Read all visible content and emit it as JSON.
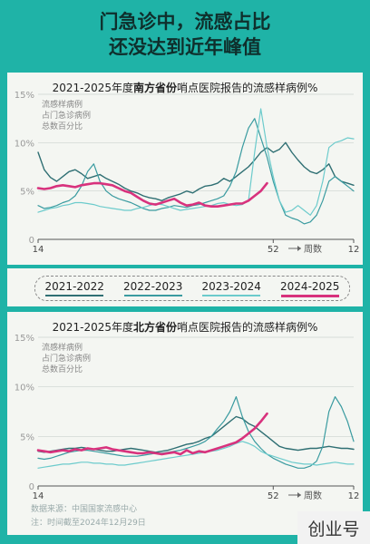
{
  "header": {
    "line1": "门急诊中，流感占比",
    "line2": "还没达到近年峰值"
  },
  "legend": [
    {
      "label": "2021-2022",
      "color": "#2f6f73"
    },
    {
      "label": "2022-2023",
      "color": "#3a9ba0"
    },
    {
      "label": "2023-2024",
      "color": "#6ccbcc"
    },
    {
      "label": "2024-2025",
      "color": "#d8327d"
    }
  ],
  "footer": {
    "source": "数据来源：中国国家流感中心",
    "note": "注：时间截至2024年12月29日"
  },
  "watermark": "创业号",
  "chart_data": [
    {
      "type": "line",
      "title_pre": "2021-2025年度",
      "title_bold": "南方省份",
      "title_post": "哨点医院报告的流感样病例%",
      "ylabel": [
        "流感样病例",
        "占门急诊病例",
        "总数百分比"
      ],
      "ylim": [
        0,
        15
      ],
      "yticks": [
        "0",
        "5%",
        "10%",
        "15%"
      ],
      "xticks": [
        "14",
        "52",
        "12"
      ],
      "xlabel": "周数",
      "x_range": [
        0,
        51
      ],
      "grid": true,
      "series": [
        {
          "name": "2021-2022",
          "color": "#2f6f73",
          "width": 1.4,
          "values": [
            9.0,
            7.2,
            6.4,
            6.0,
            6.5,
            7.0,
            7.2,
            6.8,
            6.3,
            6.5,
            6.7,
            6.3,
            6.0,
            5.7,
            5.3,
            5.0,
            4.8,
            4.5,
            4.3,
            4.2,
            4.0,
            4.3,
            4.5,
            4.7,
            5.0,
            4.8,
            5.2,
            5.5,
            5.6,
            5.8,
            6.3,
            6.0,
            6.5,
            7.0,
            7.5,
            8.2,
            9.0,
            9.5,
            9.0,
            9.3,
            10.0,
            9.0,
            8.2,
            7.5,
            7.0,
            6.8,
            7.2,
            7.8,
            6.5,
            6.0,
            5.8,
            5.6
          ]
        },
        {
          "name": "2022-2023",
          "color": "#3a9ba0",
          "width": 1.2,
          "values": [
            3.5,
            3.2,
            3.3,
            3.5,
            3.8,
            4.0,
            4.5,
            5.5,
            7.0,
            7.8,
            6.0,
            5.0,
            4.5,
            4.2,
            4.0,
            3.8,
            3.5,
            3.2,
            3.0,
            3.0,
            3.2,
            3.3,
            3.5,
            3.4,
            3.3,
            3.5,
            3.6,
            3.8,
            4.0,
            4.2,
            4.5,
            5.5,
            7.0,
            9.5,
            11.5,
            12.5,
            10.5,
            8.5,
            6.0,
            4.0,
            2.5,
            2.2,
            2.0,
            1.6,
            1.8,
            2.5,
            4.0,
            6.0,
            6.5,
            6.0,
            5.5,
            5.0
          ]
        },
        {
          "name": "2023-2024",
          "color": "#6ccbcc",
          "width": 1.2,
          "values": [
            2.8,
            3.0,
            3.2,
            3.3,
            3.5,
            3.6,
            3.8,
            3.8,
            3.7,
            3.6,
            3.4,
            3.3,
            3.2,
            3.1,
            3.0,
            3.0,
            3.2,
            3.3,
            3.5,
            3.7,
            3.6,
            3.4,
            3.2,
            3.0,
            3.1,
            3.2,
            3.3,
            3.4,
            3.5,
            3.7,
            3.8,
            3.6,
            3.5,
            3.6,
            4.0,
            9.0,
            13.5,
            9.5,
            6.5,
            4.0,
            2.8,
            3.0,
            3.5,
            3.0,
            2.5,
            3.5,
            6.0,
            9.5,
            10.0,
            10.2,
            10.5,
            10.4
          ]
        },
        {
          "name": "2024-2025",
          "color": "#d8327d",
          "width": 2.6,
          "values": [
            5.3,
            5.2,
            5.3,
            5.5,
            5.6,
            5.5,
            5.4,
            5.6,
            5.7,
            5.8,
            5.8,
            5.7,
            5.6,
            5.3,
            5.0,
            4.8,
            4.4,
            4.0,
            3.7,
            3.6,
            3.8,
            4.0,
            4.2,
            3.8,
            3.5,
            3.6,
            3.8,
            3.5,
            3.4,
            3.4,
            3.5,
            3.6,
            3.7,
            3.7,
            4.0,
            4.5,
            5.0,
            5.8
          ]
        }
      ]
    },
    {
      "type": "line",
      "title_pre": "2021-2025年度",
      "title_bold": "北方省份",
      "title_post": "哨点医院报告的流感样病例%",
      "ylabel": [
        "流感样病例",
        "占门急诊病例",
        "总数百分比"
      ],
      "ylim": [
        0,
        15
      ],
      "yticks": [
        "0",
        "5%",
        "10%",
        "15%"
      ],
      "xticks": [
        "14",
        "52",
        "12"
      ],
      "xlabel": "周数",
      "x_range": [
        0,
        51
      ],
      "grid": true,
      "series": [
        {
          "name": "2021-2022",
          "color": "#2f6f73",
          "width": 1.4,
          "values": [
            3.5,
            3.4,
            3.5,
            3.6,
            3.7,
            3.8,
            3.8,
            3.9,
            3.8,
            3.7,
            3.6,
            3.5,
            3.5,
            3.6,
            3.7,
            3.8,
            3.7,
            3.6,
            3.5,
            3.4,
            3.5,
            3.6,
            3.8,
            4.0,
            4.2,
            4.3,
            4.5,
            4.8,
            5.0,
            5.5,
            6.0,
            6.5,
            7.0,
            6.8,
            6.3,
            6.0,
            5.5,
            5.0,
            4.5,
            4.0,
            3.8,
            3.7,
            3.6,
            3.7,
            3.8,
            3.8,
            3.9,
            4.0,
            3.9,
            3.8,
            3.8,
            3.7
          ]
        },
        {
          "name": "2022-2023",
          "color": "#3a9ba0",
          "width": 1.2,
          "values": [
            2.8,
            2.7,
            2.8,
            3.0,
            3.2,
            3.4,
            3.5,
            3.6,
            3.6,
            3.5,
            3.4,
            3.3,
            3.2,
            3.1,
            3.0,
            3.0,
            3.0,
            3.1,
            3.2,
            3.3,
            3.3,
            3.4,
            3.5,
            3.6,
            3.8,
            4.0,
            4.2,
            4.5,
            5.0,
            5.8,
            6.5,
            7.5,
            9.0,
            7.0,
            5.5,
            4.5,
            3.8,
            3.2,
            2.8,
            2.5,
            2.2,
            2.0,
            1.8,
            1.8,
            2.0,
            2.5,
            4.0,
            7.5,
            9.0,
            8.0,
            6.5,
            4.5
          ]
        },
        {
          "name": "2023-2024",
          "color": "#6ccbcc",
          "width": 1.2,
          "values": [
            1.8,
            1.9,
            2.0,
            2.1,
            2.2,
            2.2,
            2.3,
            2.4,
            2.4,
            2.3,
            2.3,
            2.2,
            2.2,
            2.1,
            2.1,
            2.2,
            2.3,
            2.4,
            2.5,
            2.6,
            2.7,
            2.8,
            2.9,
            3.0,
            3.1,
            3.2,
            3.3,
            3.4,
            3.5,
            3.6,
            3.8,
            4.0,
            4.3,
            4.5,
            4.3,
            4.0,
            3.5,
            3.2,
            3.0,
            2.8,
            2.6,
            2.4,
            2.3,
            2.2,
            2.2,
            2.1,
            2.2,
            2.3,
            2.4,
            2.3,
            2.2,
            2.2
          ]
        },
        {
          "name": "2024-2025",
          "color": "#d8327d",
          "width": 2.6,
          "values": [
            3.6,
            3.5,
            3.4,
            3.5,
            3.6,
            3.5,
            3.7,
            3.6,
            3.8,
            3.7,
            3.8,
            3.9,
            3.7,
            3.6,
            3.5,
            3.4,
            3.3,
            3.3,
            3.4,
            3.3,
            3.2,
            3.3,
            3.4,
            3.2,
            3.6,
            3.3,
            3.5,
            3.4,
            3.6,
            3.8,
            4.0,
            4.2,
            4.4,
            4.8,
            5.3,
            5.8,
            6.5,
            7.3
          ]
        }
      ]
    }
  ]
}
